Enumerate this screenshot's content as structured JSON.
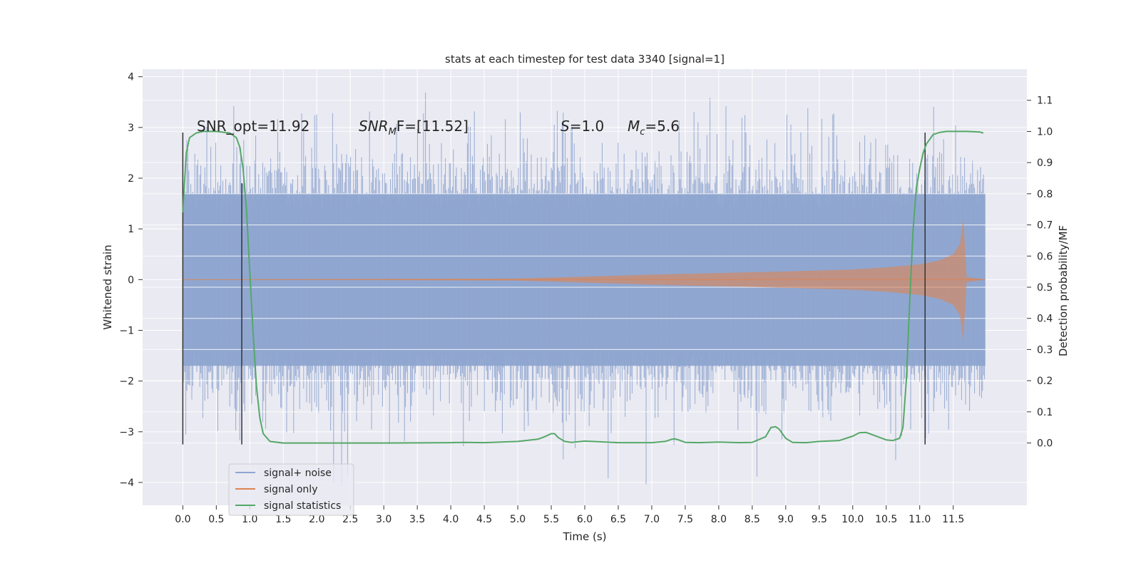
{
  "chart_data": {
    "type": "line",
    "title": "stats at each timestep for test data 3340 [signal=1]",
    "xlabel": "Time (s)",
    "ylabel_left": "Whitened strain",
    "ylabel_right": "Detection probability/MF",
    "xlim": [
      -0.6,
      12.6
    ],
    "ylim_left": [
      -4.45,
      4.15
    ],
    "ylim_right": [
      -0.2,
      1.2
    ],
    "grid": true,
    "legend_position": "lower-left",
    "x_ticks": [
      "0.0",
      "0.5",
      "1.0",
      "1.5",
      "2.0",
      "2.5",
      "3.0",
      "3.5",
      "4.0",
      "4.5",
      "5.0",
      "5.5",
      "6.0",
      "6.5",
      "7.0",
      "7.5",
      "8.0",
      "8.5",
      "9.0",
      "9.5",
      "10.0",
      "10.5",
      "11.0",
      "11.5"
    ],
    "y_left_ticks": [
      "4",
      "3",
      "2",
      "1",
      "0",
      "−1",
      "−2",
      "−3",
      "−4"
    ],
    "y_right_ticks": [
      "1.1",
      "1.0",
      "0.9",
      "0.8",
      "0.7",
      "0.6",
      "0.5",
      "0.4",
      "0.3",
      "0.2",
      "0.1",
      "0.0"
    ],
    "annotations": {
      "snr_opt": "SNR_opt=11.92",
      "snr_mf_sym": "SNR",
      "snr_mf_sub": "M",
      "snr_mf_tail": "F=[11.52]",
      "s_sym": "S",
      "s_val": "=1.0",
      "mc_sym": "M",
      "mc_sub": "c",
      "mc_val": "=5.6"
    },
    "legend": [
      "signal+ noise",
      "signal only",
      "signal statistics"
    ],
    "colors": {
      "signal_noise": "#8ea5cf",
      "signal_only": "#dd8452",
      "signal_statistics": "#55a868",
      "markers": "#333333",
      "background": "#eaeaf2",
      "grid": "#ffffff"
    },
    "series": [
      {
        "name": "signal+ noise",
        "axis": "left",
        "description_free": true,
        "x_range": [
          0.0,
          11.98
        ],
        "typical_amplitude": 1.7,
        "max_value": 3.8,
        "min_value": -4.1
      },
      {
        "name": "signal only",
        "axis": "left",
        "envelope": {
          "x": [
            0.0,
            5.0,
            6.0,
            7.0,
            8.0,
            9.0,
            10.0,
            10.5,
            11.0,
            11.3,
            11.5,
            11.6,
            11.65,
            11.7,
            11.98
          ],
          "amplitude": [
            0.0,
            0.02,
            0.06,
            0.1,
            0.13,
            0.16,
            0.2,
            0.24,
            0.3,
            0.38,
            0.5,
            0.7,
            1.2,
            0.05,
            0.0
          ]
        }
      },
      {
        "name": "signal statistics",
        "axis": "right",
        "x": [
          0.0,
          0.05,
          0.1,
          0.2,
          0.3,
          0.5,
          0.7,
          0.8,
          0.85,
          0.9,
          0.95,
          1.0,
          1.05,
          1.1,
          1.15,
          1.2,
          1.3,
          1.5,
          2.0,
          3.0,
          4.0,
          4.2,
          4.5,
          5.0,
          5.3,
          5.4,
          5.5,
          5.55,
          5.6,
          5.7,
          5.8,
          6.0,
          6.5,
          7.0,
          7.2,
          7.3,
          7.35,
          7.4,
          7.5,
          7.7,
          8.0,
          8.3,
          8.5,
          8.7,
          8.78,
          8.85,
          8.9,
          9.0,
          9.1,
          9.3,
          9.5,
          9.8,
          10.0,
          10.1,
          10.2,
          10.3,
          10.5,
          10.6,
          10.7,
          10.75,
          10.8,
          10.85,
          10.9,
          10.95,
          11.0,
          11.05,
          11.1,
          11.15,
          11.2,
          11.3,
          11.4,
          11.5,
          11.7,
          11.9,
          11.95
        ],
        "y": [
          0.74,
          0.93,
          0.98,
          0.995,
          1.0,
          1.0,
          0.995,
          0.98,
          0.95,
          0.88,
          0.75,
          0.55,
          0.35,
          0.18,
          0.08,
          0.03,
          0.005,
          0.0,
          0.0,
          0.0,
          0.001,
          0.002,
          0.001,
          0.005,
          0.012,
          0.02,
          0.03,
          0.03,
          0.018,
          0.005,
          0.002,
          0.006,
          0.001,
          0.001,
          0.005,
          0.012,
          0.013,
          0.01,
          0.002,
          0.001,
          0.003,
          0.001,
          0.002,
          0.02,
          0.05,
          0.052,
          0.045,
          0.015,
          0.002,
          0.001,
          0.005,
          0.008,
          0.022,
          0.033,
          0.034,
          0.026,
          0.01,
          0.008,
          0.015,
          0.05,
          0.2,
          0.45,
          0.68,
          0.82,
          0.88,
          0.93,
          0.96,
          0.975,
          0.99,
          0.997,
          1.0,
          1.0,
          1.0,
          0.998,
          0.995
        ]
      }
    ],
    "vertical_markers": [
      {
        "x": 0.0,
        "ymin": -3.25,
        "ymax": 2.9
      },
      {
        "x": 0.88,
        "ymin": -3.25,
        "ymax": 1.9
      },
      {
        "x": 11.08,
        "ymin": -3.25,
        "ymax": 2.9
      }
    ]
  }
}
